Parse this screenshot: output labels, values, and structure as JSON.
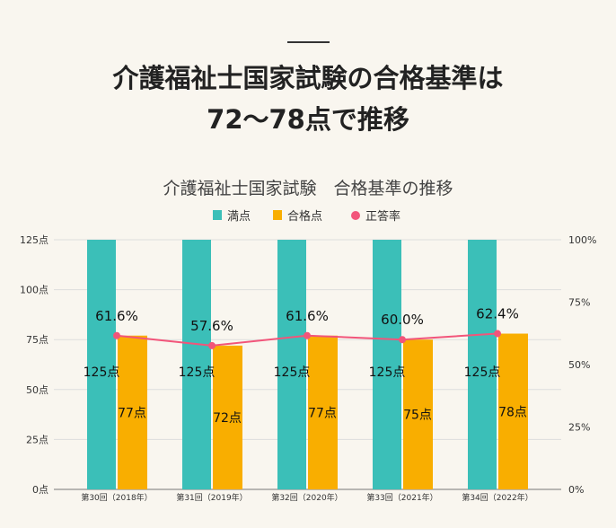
{
  "heading": {
    "line1": "介護福祉士国家試験の合格基準は",
    "line2": "72～78点で推移"
  },
  "chart_data": {
    "type": "bar",
    "title": "介護福祉士国家試験　合格基準の推移",
    "categories": [
      "第30回（2018年）",
      "第31回（2019年）",
      "第32回（2020年）",
      "第33回（2021年）",
      "第34回（2022年）"
    ],
    "series": [
      {
        "name": "満点",
        "type": "bar",
        "color": "#3bbfb8",
        "values": [
          125,
          125,
          125,
          125,
          125
        ],
        "labels": [
          "125点",
          "125点",
          "125点",
          "125点",
          "125点"
        ]
      },
      {
        "name": "合格点",
        "type": "bar",
        "color": "#f9ae00",
        "values": [
          77,
          72,
          77,
          75,
          78
        ],
        "labels": [
          "77点",
          "72点",
          "77点",
          "75点",
          "78点"
        ]
      },
      {
        "name": "正答率",
        "type": "line",
        "axis": "right",
        "color": "#f2557a",
        "values": [
          61.6,
          57.6,
          61.6,
          60.0,
          62.4
        ],
        "labels": [
          "61.6%",
          "57.6%",
          "61.6%",
          "60.0%",
          "62.4%"
        ]
      }
    ],
    "yleft": {
      "range": [
        0,
        125
      ],
      "ticks": [
        "0点",
        "25点",
        "50点",
        "75点",
        "100点",
        "125点"
      ]
    },
    "yright": {
      "range": [
        0,
        100
      ],
      "ticks": [
        "0%",
        "25%",
        "50%",
        "75%",
        "100%"
      ]
    },
    "legend": "top",
    "grid": true
  }
}
